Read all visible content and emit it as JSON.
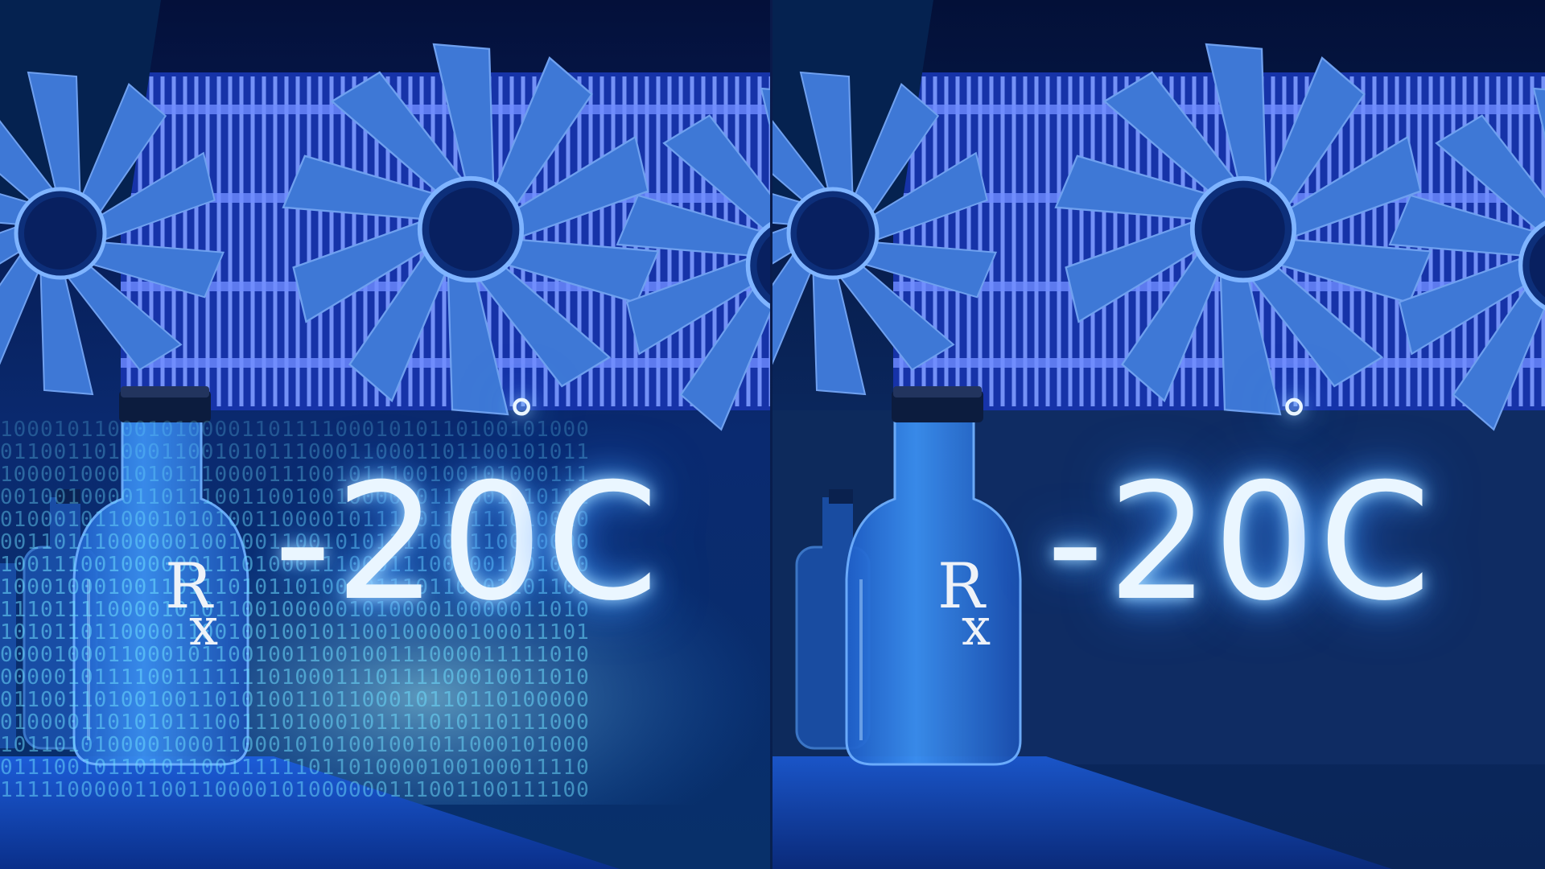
{
  "panels": [
    {
      "id": "left",
      "temperature": "-20",
      "degree_symbol": "°",
      "unit": "C",
      "bottle_label_r": "R",
      "bottle_label_x": "x",
      "background": "binary-code",
      "binary_rows": [
        "10001011000101000011011110001010110100101000",
        "01100110100011001010111000110001101100101011",
        "10000100010101110000111001011100100101000111",
        "00100100001101110011001001000000111001010111",
        "01000101100010101001100001011100110111010010",
        "00110111000000100100110010101111000110010000",
        "10011100100000011101000111000111000001001010",
        "10001000100110111010110100101110110101101101",
        "11101111000010101100100000101000010000011010",
        "10101101100001100100100101100100000100011101",
        "00001000110001011001001100100111000011111010",
        "00000101111001111111010001110111100010011010",
        "01100110100100110101001101100010110110100000",
        "01000011010101110011101000101111010110111000",
        "10110101000010001100010101001001011000101000",
        "01110010110101100111111011010000100100011110",
        "11111000001100110000101000000111001100111100"
      ]
    },
    {
      "id": "right",
      "temperature": "-20",
      "degree_symbol": "°",
      "unit": "C",
      "bottle_label_r": "R",
      "bottle_label_x": "x",
      "background": "dark-wall"
    }
  ],
  "colors": {
    "fan_blade": "#3e78d6",
    "fin_glow": "#5b8cff",
    "bottle_glass": "#2f7fe0",
    "text_glow": "#4fa8ff",
    "binary_text": "#6fe0ff",
    "wall": "#0d2a5c"
  },
  "icons": {
    "fan": "fan-icon",
    "bottle": "vial-icon",
    "rx": "prescription-symbol"
  }
}
